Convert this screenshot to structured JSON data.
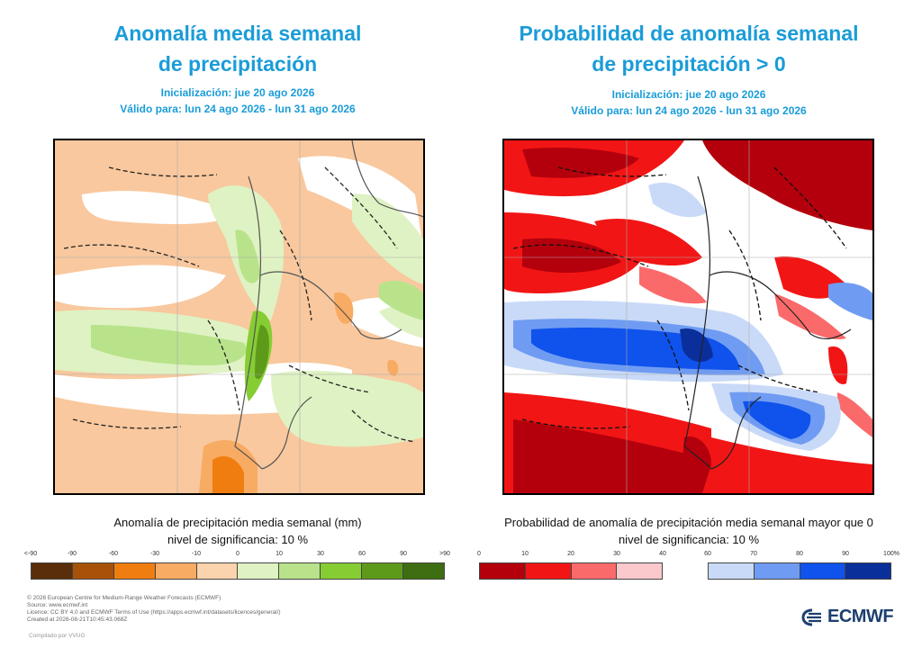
{
  "left_panel": {
    "title_line1": "Anomalía media semanal",
    "title_line2": "de precipitación",
    "init": "Inicialización: jue 20 ago 2026",
    "valid": "Válido para: lun 24 ago 2026 - lun 31 ago 2026",
    "caption": "Anomalía de precipitación media semanal (mm)",
    "significance": "nivel de significancia: 10 %",
    "colorbar": {
      "labels": [
        "<-90",
        "-90",
        "-60",
        "-30",
        "-10",
        "0",
        "10",
        "30",
        "60",
        "90",
        ">90"
      ],
      "colors": [
        "#5a2e0a",
        "#a85209",
        "#f07d10",
        "#f8ab63",
        "#fbd3ac",
        "#dff2c3",
        "#b8e38b",
        "#86cd33",
        "#5e9a1a",
        "#3f6e12"
      ]
    }
  },
  "right_panel": {
    "title_line1": "Probabilidad de anomalía semanal",
    "title_line2": "de precipitación > 0",
    "init": "Inicialización: jue 20 ago 2026",
    "valid": "Válido para: lun 24 ago 2026 - lun 31 ago 2026",
    "caption": "Probabilidad de anomalía de precipitación media semanal mayor que 0",
    "significance": "nivel de significancia: 10 %",
    "colorbar": {
      "labels_low": [
        "0",
        "10",
        "20",
        "30",
        "40"
      ],
      "labels_high": [
        "60",
        "70",
        "80",
        "90",
        "100%"
      ],
      "colors_low": [
        "#b3000c",
        "#f21515",
        "#fa6a6a",
        "#fbc9cc"
      ],
      "colors_high": [
        "#c9daf8",
        "#6f9cf2",
        "#0f52ec",
        "#0b2f9a"
      ]
    }
  },
  "footer": {
    "line1": "© 2026 European Centre for Medium-Range Weather Forecasts (ECMWF)",
    "line2": "Source: www.ecmwf.int",
    "line3": "Licence: CC BY 4.0 and ECMWF Terms of Use (https://apps.ecmwf.int/datasets/licences/general/)",
    "line4": "Created at 2026-08-21T10:45:43.068Z",
    "compiled": "Compilado por VVUG"
  },
  "logo": {
    "text": "ECMWF",
    "color": "#1c3f6e"
  },
  "colors": {
    "title": "#1a9cd8"
  }
}
